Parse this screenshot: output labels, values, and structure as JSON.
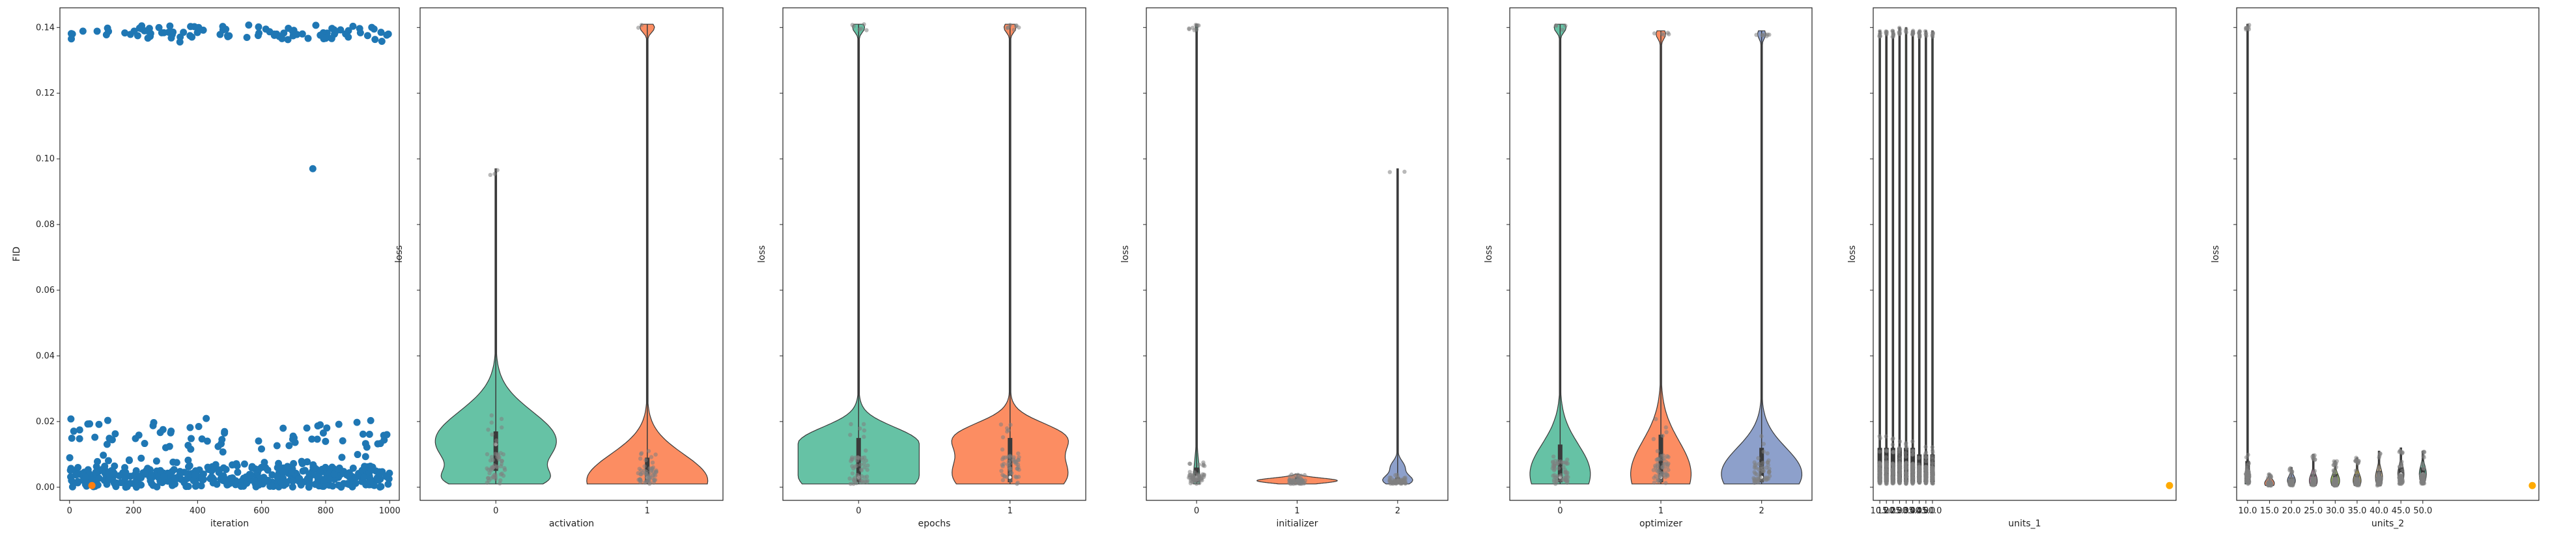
{
  "colors": {
    "scatter_main": "#1f77b4",
    "scatter_best": "#ff7f0e",
    "best_marker": "#ffaa00",
    "jitter": "#808080",
    "palette": [
      "#66c2a5",
      "#fc8d62",
      "#8da0cb",
      "#e78ac3",
      "#a6d854",
      "#ffd92f",
      "#e5c494",
      "#b3b3b3"
    ]
  },
  "chart_data": [
    {
      "type": "scatter",
      "xlabel": "iteration",
      "ylabel": "FID",
      "xlim": [
        -30,
        1030
      ],
      "ylim": [
        -0.004,
        0.146
      ],
      "x_ticks": [
        "0",
        "200",
        "400",
        "600",
        "800",
        "1000"
      ],
      "y_ticks": [
        "0.00",
        "0.02",
        "0.04",
        "0.06",
        "0.08",
        "0.10",
        "0.12",
        "0.14"
      ],
      "clusters": [
        {
          "x_range": [
            0,
            1000
          ],
          "y_center": 0.1385,
          "y_spread": 0.0012,
          "count": 95
        },
        {
          "x_range": [
            0,
            1000
          ],
          "y_center": 0.0155,
          "y_spread": 0.0025,
          "count": 70
        },
        {
          "x_range": [
            0,
            1000
          ],
          "y_center": 0.003,
          "y_spread": 0.0022,
          "count": 420
        }
      ],
      "outliers": [
        {
          "x": 760,
          "y": 0.097
        }
      ],
      "best": [
        {
          "x": 70,
          "y": 0.0005
        }
      ]
    },
    {
      "type": "violin",
      "xlabel": "activation",
      "ylabel": "loss",
      "categories": [
        "0",
        "1"
      ],
      "violins": [
        {
          "category": "0",
          "min": 0.001,
          "max": 0.097,
          "q1": 0.005,
          "median": 0.013,
          "q3": 0.017,
          "peaks": [
            {
              "y": 0.014,
              "w": 1.0,
              "s": 0.009
            },
            {
              "y": 0.002,
              "w": 0.45,
              "s": 0.003
            }
          ]
        },
        {
          "category": "1",
          "min": 0.001,
          "max": 0.141,
          "q1": 0.0015,
          "median": 0.003,
          "q3": 0.009,
          "peaks": [
            {
              "y": 0.002,
              "w": 1.0,
              "s": 0.008
            },
            {
              "y": 0.14,
              "w": 0.12,
              "s": 0.0015
            }
          ]
        }
      ]
    },
    {
      "type": "violin",
      "xlabel": "epochs",
      "ylabel": "loss",
      "categories": [
        "0",
        "1"
      ],
      "violins": [
        {
          "category": "0",
          "min": 0.001,
          "max": 0.141,
          "q1": 0.0015,
          "median": 0.003,
          "q3": 0.015,
          "peaks": [
            {
              "y": 0.004,
              "w": 1.0,
              "s": 0.008
            },
            {
              "y": 0.015,
              "w": 0.55,
              "s": 0.004
            },
            {
              "y": 0.14,
              "w": 0.1,
              "s": 0.0015
            }
          ]
        },
        {
          "category": "1",
          "min": 0.001,
          "max": 0.141,
          "q1": 0.0015,
          "median": 0.003,
          "q3": 0.015,
          "peaks": [
            {
              "y": 0.004,
              "w": 0.95,
              "s": 0.008
            },
            {
              "y": 0.016,
              "w": 0.6,
              "s": 0.004
            },
            {
              "y": 0.14,
              "w": 0.1,
              "s": 0.0015
            }
          ]
        }
      ]
    },
    {
      "type": "violin",
      "xlabel": "initializer",
      "ylabel": "loss",
      "categories": [
        "0",
        "1",
        "2"
      ],
      "violins": [
        {
          "category": "0",
          "min": 0.001,
          "max": 0.141,
          "q1": 0.0015,
          "median": 0.003,
          "q3": 0.006,
          "peaks": [
            {
              "y": 0.002,
              "w": 0.08,
              "s": 0.006
            },
            {
              "y": 0.14,
              "w": 0.03,
              "s": 0.0015
            }
          ]
        },
        {
          "category": "1",
          "min": 0.001,
          "max": 0.004,
          "q1": 0.0015,
          "median": 0.002,
          "q3": 0.003,
          "peaks": [
            {
              "y": 0.002,
              "w": 1.0,
              "s": 0.0008
            }
          ]
        },
        {
          "category": "2",
          "min": 0.001,
          "max": 0.097,
          "q1": 0.0015,
          "median": 0.002,
          "q3": 0.003,
          "peaks": [
            {
              "y": 0.002,
              "w": 0.35,
              "s": 0.0015
            },
            {
              "y": 0.006,
              "w": 0.18,
              "s": 0.002
            }
          ]
        }
      ]
    },
    {
      "type": "violin",
      "xlabel": "optimizer",
      "ylabel": "loss",
      "categories": [
        "0",
        "1",
        "2"
      ],
      "violins": [
        {
          "category": "0",
          "min": 0.001,
          "max": 0.141,
          "q1": 0.0015,
          "median": 0.003,
          "q3": 0.013,
          "peaks": [
            {
              "y": 0.004,
              "w": 0.75,
              "s": 0.009
            },
            {
              "y": 0.14,
              "w": 0.15,
              "s": 0.0015
            }
          ]
        },
        {
          "category": "1",
          "min": 0.001,
          "max": 0.139,
          "q1": 0.0015,
          "median": 0.003,
          "q3": 0.016,
          "peaks": [
            {
              "y": 0.004,
              "w": 0.75,
              "s": 0.01
            },
            {
              "y": 0.138,
              "w": 0.12,
              "s": 0.0015
            }
          ]
        },
        {
          "category": "2",
          "min": 0.001,
          "max": 0.139,
          "q1": 0.0015,
          "median": 0.003,
          "q3": 0.012,
          "peaks": [
            {
              "y": 0.004,
              "w": 1.0,
              "s": 0.008
            },
            {
              "y": 0.138,
              "w": 0.1,
              "s": 0.0015
            }
          ]
        }
      ]
    },
    {
      "type": "violin",
      "xlabel": "units_1",
      "ylabel": "loss",
      "categories": [
        "10.0",
        "15.0",
        "20.0",
        "25.0",
        "30.0",
        "35.0",
        "40.0",
        "45.0",
        "50.0"
      ],
      "category_positions": [
        0,
        1,
        2,
        3,
        4,
        5,
        6,
        7,
        8
      ],
      "xlim": [
        -1,
        45
      ],
      "tick_labels": [
        "10.0",
        "15.0",
        "20.0",
        "25.0",
        "30.0",
        "35.0",
        "40.0",
        "45.0",
        "50.0"
      ],
      "violins": [
        {
          "category": "10.0",
          "min": 0.001,
          "max": 0.139,
          "q1": 0.0015,
          "median": 0.003,
          "q3": 0.012,
          "peaks": [
            {
              "y": 0.003,
              "w": 0.12,
              "s": 0.006
            }
          ]
        },
        {
          "category": "15.0",
          "min": 0.001,
          "max": 0.139,
          "q1": 0.0015,
          "median": 0.003,
          "q3": 0.012,
          "peaks": [
            {
              "y": 0.003,
              "w": 0.12,
              "s": 0.006
            }
          ]
        },
        {
          "category": "20.0",
          "min": 0.001,
          "max": 0.139,
          "q1": 0.0015,
          "median": 0.003,
          "q3": 0.012,
          "peaks": [
            {
              "y": 0.003,
              "w": 0.12,
              "s": 0.006
            }
          ]
        },
        {
          "category": "25.0",
          "min": 0.001,
          "max": 0.14,
          "q1": 0.0015,
          "median": 0.003,
          "q3": 0.012,
          "peaks": [
            {
              "y": 0.003,
              "w": 0.12,
              "s": 0.006
            }
          ]
        },
        {
          "category": "30.0",
          "min": 0.001,
          "max": 0.14,
          "q1": 0.0015,
          "median": 0.003,
          "q3": 0.012,
          "peaks": [
            {
              "y": 0.003,
              "w": 0.12,
              "s": 0.006
            }
          ]
        },
        {
          "category": "35.0",
          "min": 0.001,
          "max": 0.139,
          "q1": 0.0015,
          "median": 0.003,
          "q3": 0.012,
          "peaks": [
            {
              "y": 0.003,
              "w": 0.12,
              "s": 0.006
            }
          ]
        },
        {
          "category": "40.0",
          "min": 0.001,
          "max": 0.139,
          "q1": 0.0015,
          "median": 0.003,
          "q3": 0.01,
          "peaks": [
            {
              "y": 0.003,
              "w": 0.12,
              "s": 0.006
            }
          ]
        },
        {
          "category": "45.0",
          "min": 0.001,
          "max": 0.139,
          "q1": 0.0015,
          "median": 0.003,
          "q3": 0.01,
          "peaks": [
            {
              "y": 0.003,
              "w": 0.12,
              "s": 0.006
            }
          ]
        },
        {
          "category": "50.0",
          "min": 0.001,
          "max": 0.139,
          "q1": 0.0015,
          "median": 0.003,
          "q3": 0.01,
          "peaks": [
            {
              "y": 0.003,
              "w": 0.12,
              "s": 0.006
            }
          ]
        }
      ],
      "best": [
        {
          "x": 44,
          "y": 0.0005
        }
      ]
    },
    {
      "type": "violin",
      "xlabel": "units_2",
      "ylabel": "loss",
      "categories": [
        "10.0",
        "15.0",
        "20.0",
        "25.0",
        "30.0",
        "35.0",
        "40.0",
        "45.0",
        "50.0"
      ],
      "category_positions": [
        0,
        1,
        2,
        3,
        4,
        5,
        6,
        7,
        8
      ],
      "xlim": [
        -0.5,
        13.3
      ],
      "tick_labels": [
        "10.0",
        "15.0",
        "20.0",
        "25.0",
        "30.0",
        "35.0",
        "40.0",
        "45.0",
        "50.0"
      ],
      "violins": [
        {
          "category": "10.0",
          "min": 0.001,
          "max": 0.141,
          "q1": 0.0015,
          "median": 0.003,
          "q3": 0.008,
          "peaks": [
            {
              "y": 0.002,
              "w": 0.3,
              "s": 0.004
            },
            {
              "y": 0.14,
              "w": 0.05,
              "s": 0.0015
            }
          ]
        },
        {
          "category": "15.0",
          "min": 0.0005,
          "max": 0.004,
          "q1": 0.001,
          "median": 0.0015,
          "q3": 0.002,
          "peaks": [
            {
              "y": 0.0012,
              "w": 0.55,
              "s": 0.0012
            }
          ]
        },
        {
          "category": "20.0",
          "min": 0.0005,
          "max": 0.006,
          "q1": 0.001,
          "median": 0.002,
          "q3": 0.003,
          "peaks": [
            {
              "y": 0.002,
              "w": 0.45,
              "s": 0.0015
            }
          ]
        },
        {
          "category": "25.0",
          "min": 0.0005,
          "max": 0.01,
          "q1": 0.001,
          "median": 0.002,
          "q3": 0.004,
          "peaks": [
            {
              "y": 0.002,
              "w": 0.45,
              "s": 0.002
            }
          ]
        },
        {
          "category": "30.0",
          "min": 0.0005,
          "max": 0.008,
          "q1": 0.001,
          "median": 0.002,
          "q3": 0.004,
          "peaks": [
            {
              "y": 0.002,
              "w": 0.5,
              "s": 0.002
            }
          ]
        },
        {
          "category": "35.0",
          "min": 0.0005,
          "max": 0.009,
          "q1": 0.001,
          "median": 0.002,
          "q3": 0.004,
          "peaks": [
            {
              "y": 0.002,
              "w": 0.45,
              "s": 0.002
            }
          ]
        },
        {
          "category": "40.0",
          "min": 0.0005,
          "max": 0.011,
          "q1": 0.001,
          "median": 0.003,
          "q3": 0.005,
          "peaks": [
            {
              "y": 0.003,
              "w": 0.4,
              "s": 0.0025
            }
          ]
        },
        {
          "category": "45.0",
          "min": 0.001,
          "max": 0.012,
          "q1": 0.002,
          "median": 0.004,
          "q3": 0.006,
          "peaks": [
            {
              "y": 0.004,
              "w": 0.35,
              "s": 0.0025
            }
          ]
        },
        {
          "category": "50.0",
          "min": 0.001,
          "max": 0.011,
          "q1": 0.002,
          "median": 0.004,
          "q3": 0.006,
          "peaks": [
            {
              "y": 0.004,
              "w": 0.4,
              "s": 0.0025
            }
          ]
        }
      ],
      "best": [
        {
          "x": 13,
          "y": 0.0005
        }
      ]
    }
  ]
}
